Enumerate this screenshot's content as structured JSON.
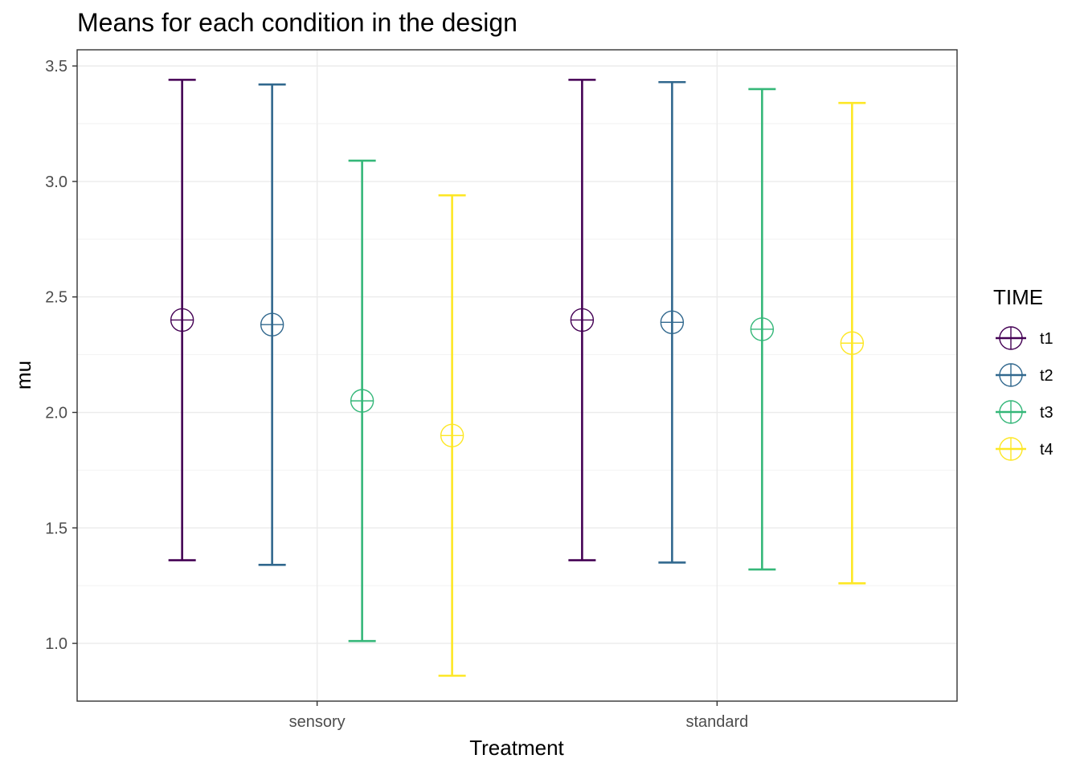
{
  "chart_data": {
    "type": "errorbar",
    "title": "Means for each condition in the design",
    "xlabel": "Treatment",
    "ylabel": "mu",
    "categories": [
      "sensory",
      "standard"
    ],
    "ylim": [
      0.75,
      3.57
    ],
    "yticks": [
      "1.0",
      "1.5",
      "2.0",
      "2.5",
      "3.0",
      "3.5"
    ],
    "grid": true,
    "legend": {
      "title": "TIME",
      "position": "right"
    },
    "series": [
      {
        "name": "t1",
        "color": "#440154",
        "mean": [
          2.4,
          2.4
        ],
        "lower": [
          1.36,
          1.36
        ],
        "upper": [
          3.44,
          3.44
        ]
      },
      {
        "name": "t2",
        "color": "#31688E",
        "mean": [
          2.38,
          2.39
        ],
        "lower": [
          1.34,
          1.35
        ],
        "upper": [
          3.42,
          3.43
        ]
      },
      {
        "name": "t3",
        "color": "#35B779",
        "mean": [
          2.05,
          2.36
        ],
        "lower": [
          1.01,
          1.32
        ],
        "upper": [
          3.09,
          3.4
        ]
      },
      {
        "name": "t4",
        "color": "#FDE725",
        "mean": [
          1.9,
          2.3
        ],
        "lower": [
          0.86,
          1.26
        ],
        "upper": [
          2.94,
          3.34
        ]
      }
    ]
  }
}
